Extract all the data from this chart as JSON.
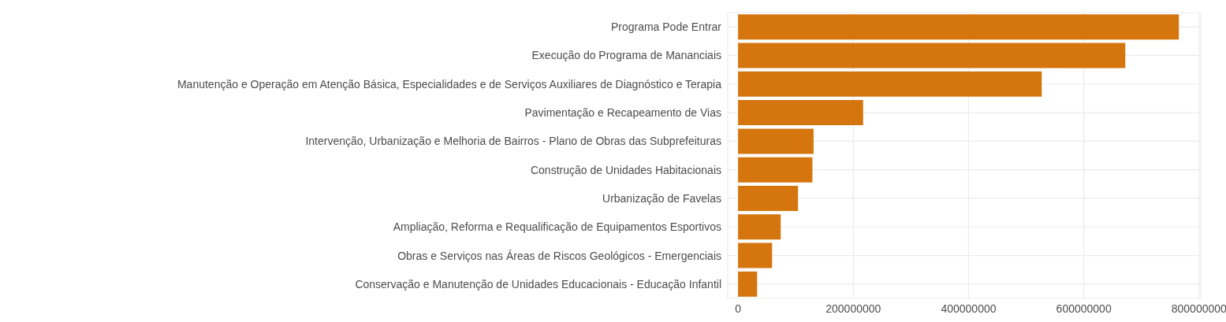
{
  "chart_data": {
    "type": "bar",
    "orientation": "horizontal",
    "categories": [
      "Programa Pode Entrar",
      "Execução do Programa de Mananciais",
      "Manutenção e Operação em Atenção Básica, Especialidades e de Serviços Auxiliares de Diagnóstico e Terapia",
      "Pavimentação e Recapeamento de Vias",
      "Intervenção, Urbanização e Melhoria de Bairros - Plano de Obras das Subprefeituras",
      "Construção de Unidades Habitacionais",
      "Urbanização de Favelas",
      "Ampliação, Reforma e Requalificação de Equipamentos Esportivos",
      "Obras e Serviços nas Áreas de Riscos Geológicos - Emergenciais",
      "Conservação e Manutenção de Unidades Educacionais - Educação Infantil"
    ],
    "values": [
      765000000,
      672000000,
      527000000,
      217000000,
      131000000,
      129000000,
      104000000,
      74000000,
      59000000,
      33000000
    ],
    "color": "#d5750e",
    "xlim": [
      -18000000,
      803000000
    ],
    "xticks": [
      0,
      200000000,
      400000000,
      600000000,
      800000000
    ],
    "grid": true
  }
}
